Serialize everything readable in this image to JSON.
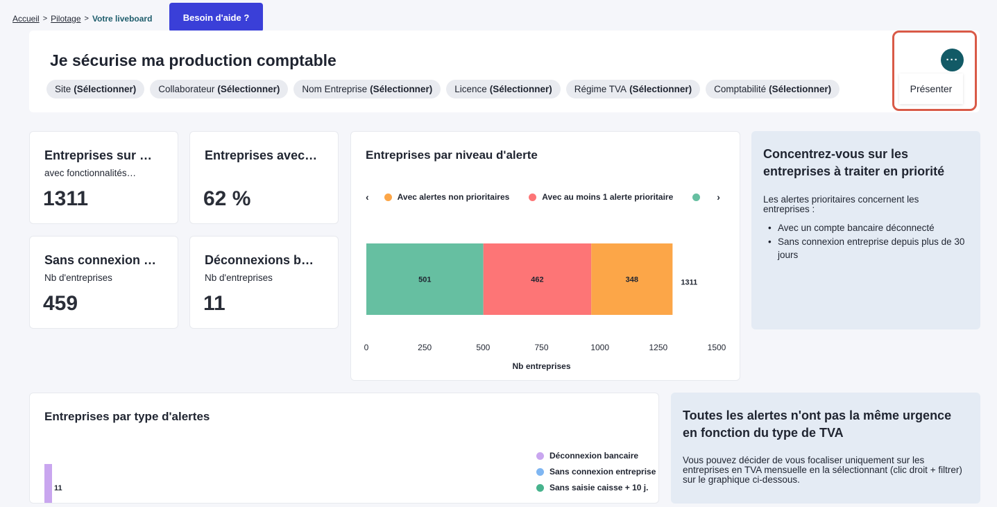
{
  "breadcrumb": {
    "home": "Accueil",
    "pilotage": "Pilotage",
    "current": "Votre liveboard",
    "separator": ">"
  },
  "help_button": "Besoin d'aide ?",
  "header": {
    "title": "Je sécurise ma production comptable",
    "more_icon": "more-horizontal-icon",
    "more_glyph": "···",
    "present_label": "Présenter",
    "filters": [
      {
        "label": "Site",
        "value": "(Sélectionner)"
      },
      {
        "label": "Collaborateur",
        "value": "(Sélectionner)"
      },
      {
        "label": "Nom Entreprise",
        "value": "(Sélectionner)"
      },
      {
        "label": "Licence",
        "value": "(Sélectionner)"
      },
      {
        "label": "Régime TVA",
        "value": "(Sélectionner)"
      },
      {
        "label": "Comptabilité",
        "value": "(Sélectionner)"
      }
    ]
  },
  "kpis": [
    {
      "title": "Entreprises sur …",
      "subtitle": "avec fonctionnalités…",
      "value": "1311"
    },
    {
      "title": "Entreprises avec…",
      "subtitle": "",
      "value": "62 %"
    },
    {
      "title": "Sans connexion …",
      "subtitle": "Nb d'entreprises",
      "value": "459"
    },
    {
      "title": "Déconnexions b…",
      "subtitle": "Nb d'entreprises",
      "value": "11"
    }
  ],
  "alert_chart": {
    "title": "Entreprises par niveau d'alerte",
    "prev_glyph": "‹",
    "next_glyph": "›",
    "legend": [
      {
        "label": "Avec alertes non prioritaires",
        "color": "#fca648"
      },
      {
        "label": "Avec au moins 1 alerte prioritaire",
        "color": "#fd7576"
      },
      {
        "label": "",
        "color": "#66bfa1"
      }
    ]
  },
  "chart_data": [
    {
      "type": "bar",
      "orientation": "horizontal-stacked",
      "title": "Entreprises par niveau d'alerte",
      "xlabel": "Nb entreprises",
      "xlim": [
        0,
        1500
      ],
      "xticks": [
        0,
        250,
        500,
        750,
        1000,
        1250,
        1500
      ],
      "series": [
        {
          "value": 501,
          "color": "#66bfa1"
        },
        {
          "value": 462,
          "color": "#fd7576"
        },
        {
          "value": 348,
          "color": "#fca648"
        }
      ],
      "total": 1311,
      "legend": [
        "Avec alertes non prioritaires",
        "Avec au moins 1 alerte prioritaire"
      ]
    },
    {
      "type": "bar",
      "title": "Entreprises par type d'alertes",
      "values": [
        11
      ],
      "legend": [
        "Déconnexion bancaire",
        "Sans connexion entreprise + …",
        "Sans saisie caisse + 10 j."
      ]
    }
  ],
  "priority_info": {
    "title": "Concentrez-vous sur les entreprises à traiter en priorité",
    "text": "Les alertes prioritaires concernent les entreprises :",
    "items": [
      "Avec un compte bancaire déconnecté",
      "Sans connexion entreprise depuis plus de 30 jours"
    ]
  },
  "type_chart": {
    "title": "Entreprises par type d'alertes",
    "bar_label": "11",
    "legend": [
      {
        "label": "Déconnexion bancaire",
        "color": "#c9a6ef"
      },
      {
        "label": "Sans connexion entreprise + …",
        "color": "#7fb6f2"
      },
      {
        "label": "Sans saisie caisse + 10 j.",
        "color": "#47b38d"
      }
    ]
  },
  "tva_info": {
    "title": "Toutes les alertes n'ont pas la même urgence en fonction du type de TVA",
    "text": "Vous pouvez décider de vous focaliser uniquement sur les entreprises en TVA mensuelle en la sélectionnant (clic droit + filtrer) sur le graphique ci-dessous."
  }
}
